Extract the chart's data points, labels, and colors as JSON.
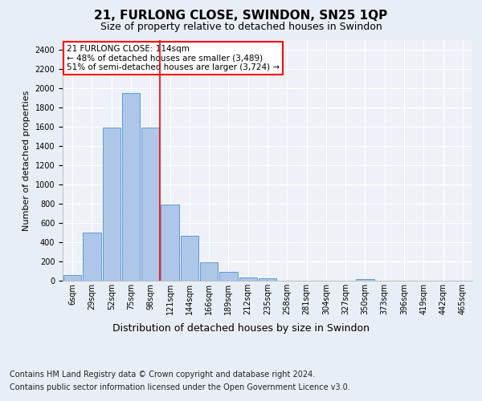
{
  "title1": "21, FURLONG CLOSE, SWINDON, SN25 1QP",
  "title2": "Size of property relative to detached houses in Swindon",
  "xlabel": "Distribution of detached houses by size in Swindon",
  "ylabel": "Number of detached properties",
  "footer1": "Contains HM Land Registry data © Crown copyright and database right 2024.",
  "footer2": "Contains public sector information licensed under the Open Government Licence v3.0.",
  "categories": [
    "6sqm",
    "29sqm",
    "52sqm",
    "75sqm",
    "98sqm",
    "121sqm",
    "144sqm",
    "166sqm",
    "189sqm",
    "212sqm",
    "235sqm",
    "258sqm",
    "281sqm",
    "304sqm",
    "327sqm",
    "350sqm",
    "373sqm",
    "396sqm",
    "419sqm",
    "442sqm",
    "465sqm"
  ],
  "values": [
    60,
    500,
    1590,
    1950,
    1590,
    790,
    470,
    195,
    90,
    35,
    25,
    0,
    0,
    0,
    0,
    20,
    0,
    0,
    0,
    0,
    0
  ],
  "bar_color": "#aec6e8",
  "bar_edge_color": "#5b9bd5",
  "vline_x": 4.5,
  "vline_color": "red",
  "annotation_title": "21 FURLONG CLOSE: 114sqm",
  "annotation_line1": "← 48% of detached houses are smaller (3,489)",
  "annotation_line2": "51% of semi-detached houses are larger (3,724) →",
  "annotation_box_color": "white",
  "annotation_box_edge": "red",
  "ylim": [
    0,
    2500
  ],
  "yticks": [
    0,
    200,
    400,
    600,
    800,
    1000,
    1200,
    1400,
    1600,
    1800,
    2000,
    2200,
    2400
  ],
  "bg_color": "#e8eef5",
  "plot_bg_color": "#eef2f8",
  "title1_fontsize": 11,
  "title2_fontsize": 9,
  "xlabel_fontsize": 9,
  "ylabel_fontsize": 8,
  "footer_fontsize": 7,
  "annotation_fontsize": 7.5,
  "tick_fontsize": 7
}
